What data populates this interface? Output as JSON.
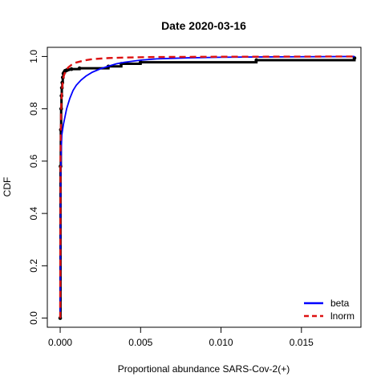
{
  "chart_data": {
    "type": "line",
    "title": "Date 2020-03-16",
    "xlabel": "Proportional abundance SARS-Cov-2(+)",
    "ylabel": "CDF",
    "xlim": [
      -0.0008,
      0.0187
    ],
    "ylim": [
      -0.035,
      1.035
    ],
    "x_ticks": [
      0.0,
      0.005,
      0.01,
      0.015
    ],
    "x_tick_labels": [
      "0.000",
      "0.005",
      "0.010",
      "0.015"
    ],
    "y_ticks": [
      0.0,
      0.2,
      0.4,
      0.6,
      0.8,
      1.0
    ],
    "y_tick_labels": [
      "0.0",
      "0.2",
      "0.4",
      "0.6",
      "0.8",
      "1.0"
    ],
    "grid": false,
    "legend_position": "bottom-right",
    "empirical": {
      "color": "#000000",
      "x": [
        0.0,
        2e-05,
        4e-05,
        6e-05,
        8e-05,
        0.0001,
        0.00013,
        0.00016,
        0.0002,
        0.00025,
        0.0003,
        0.0004,
        0.0005,
        0.0007,
        0.0012,
        0.003,
        0.0038,
        0.005,
        0.0122,
        0.0183
      ],
      "y": [
        0.0,
        0.58,
        0.72,
        0.8,
        0.85,
        0.88,
        0.9,
        0.92,
        0.935,
        0.94,
        0.945,
        0.948,
        0.95,
        0.952,
        0.955,
        0.962,
        0.972,
        0.978,
        0.986,
        0.994
      ]
    },
    "series": [
      {
        "name": "beta",
        "color": "#0000ff",
        "dash": "solid",
        "x": [
          0.0,
          3e-05,
          7e-05,
          0.0001,
          0.0002,
          0.0003,
          0.0004,
          0.0006,
          0.0008,
          0.001,
          0.0013,
          0.0016,
          0.002,
          0.0025,
          0.003,
          0.0035,
          0.004,
          0.005,
          0.006,
          0.008,
          0.01,
          0.012,
          0.015,
          0.0183
        ],
        "y": [
          0.0,
          0.55,
          0.65,
          0.7,
          0.74,
          0.77,
          0.8,
          0.84,
          0.87,
          0.89,
          0.91,
          0.925,
          0.94,
          0.953,
          0.963,
          0.972,
          0.978,
          0.986,
          0.991,
          0.995,
          0.997,
          0.998,
          0.999,
          1.0
        ]
      },
      {
        "name": "lnorm",
        "color": "#dd1111",
        "dash": "dashed",
        "x": [
          0.0,
          2e-05,
          5e-05,
          0.0001,
          0.00015,
          0.0002,
          0.0003,
          0.0004,
          0.0005,
          0.0007,
          0.001,
          0.0015,
          0.002,
          0.003,
          0.004,
          0.006,
          0.01,
          0.0183
        ],
        "y": [
          0.0,
          0.62,
          0.78,
          0.86,
          0.9,
          0.92,
          0.94,
          0.95,
          0.958,
          0.968,
          0.977,
          0.985,
          0.99,
          0.994,
          0.996,
          0.998,
          0.999,
          1.0
        ]
      }
    ]
  }
}
